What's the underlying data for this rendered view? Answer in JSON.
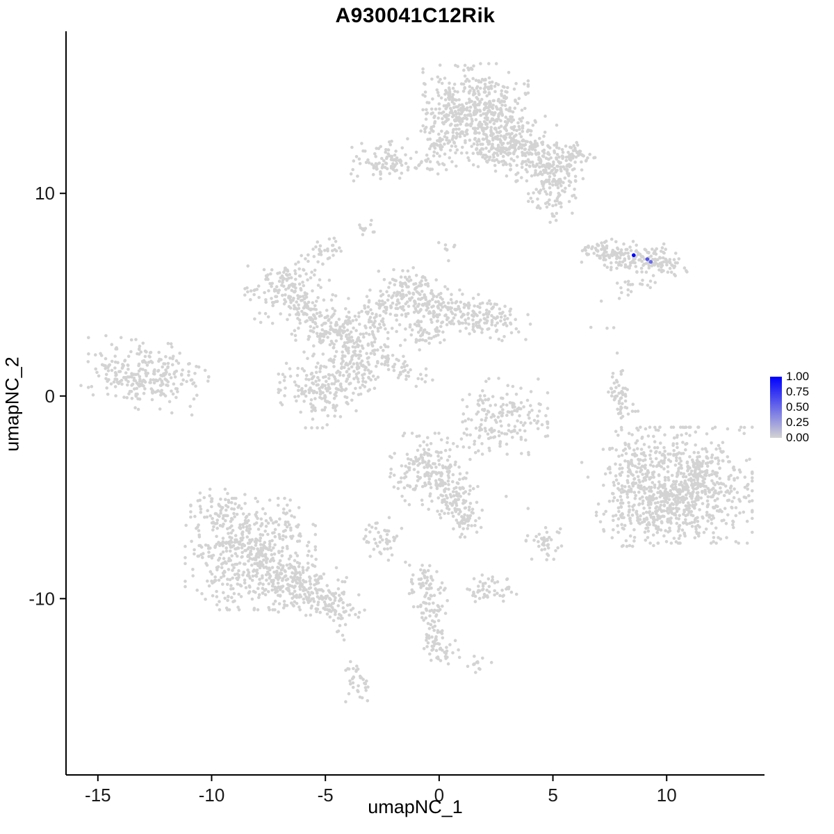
{
  "title": "A930041C12Rik",
  "axes": {
    "x_label": "umapNC_1",
    "y_label": "umapNC_2",
    "x_ticks": [
      -15,
      -10,
      -5,
      0,
      5,
      10
    ],
    "y_ticks": [
      -10,
      0,
      10
    ],
    "x_range": [
      -16.4,
      14.3
    ],
    "y_range": [
      -18.7,
      18.0
    ]
  },
  "legend": {
    "labels": [
      "1.00",
      "0.75",
      "0.50",
      "0.25",
      "0.00"
    ]
  },
  "colors": {
    "low": "#d3d3d3",
    "high": "#0000ff",
    "axis": "#000000",
    "tick_text": "#1a1a1a"
  },
  "chart_data": {
    "type": "scatter",
    "title": "A930041C12Rik",
    "xlabel": "umapNC_1",
    "ylabel": "umapNC_2",
    "xlim": [
      -16.4,
      14.3
    ],
    "ylim": [
      -18.7,
      18.0
    ],
    "grid": false,
    "legend_position": "right",
    "description": "UMAP feature plot of single-cell gene expression for A930041C12Rik. Nearly all cells (light grey, expression 0.00) form many clusters; only a few cells in the small cluster near (8.5, 7) show expression (blue). Grey cells are summarized as gaussian blobs in 'clusters' with format [cx, cy, sx, sy, rot_deg, n]; colored cells are listed individually in 'expressing_points'.",
    "clusters_format": [
      "cx",
      "cy",
      "sx",
      "sy",
      "rot_deg",
      "n"
    ],
    "clusters": [
      [
        1.6,
        14.2,
        1.05,
        1.0,
        0,
        400
      ],
      [
        2.7,
        12.7,
        0.95,
        0.8,
        -20,
        230
      ],
      [
        4.3,
        11.5,
        1.0,
        0.6,
        -25,
        190
      ],
      [
        4.9,
        10.0,
        0.5,
        0.65,
        0,
        80
      ],
      [
        5.7,
        11.9,
        0.5,
        0.45,
        0,
        55
      ],
      [
        0.3,
        12.9,
        0.5,
        0.8,
        0,
        80
      ],
      [
        -2.6,
        11.6,
        0.75,
        0.45,
        10,
        85
      ],
      [
        -0.9,
        11.4,
        0.7,
        0.2,
        0,
        25
      ],
      [
        -3.15,
        8.25,
        0.25,
        0.2,
        0,
        12
      ],
      [
        -4.8,
        7.3,
        0.45,
        0.28,
        0,
        26
      ],
      [
        7.2,
        7.05,
        0.55,
        0.32,
        -10,
        55
      ],
      [
        8.6,
        6.9,
        0.8,
        0.38,
        -8,
        115
      ],
      [
        9.9,
        6.55,
        0.45,
        0.28,
        0,
        45
      ],
      [
        8.6,
        5.55,
        0.45,
        0.22,
        0,
        16
      ],
      [
        8.0,
        5.0,
        0.15,
        0.15,
        0,
        3
      ],
      [
        -6.7,
        5.4,
        0.85,
        0.7,
        20,
        150
      ],
      [
        -6.0,
        4.2,
        0.6,
        0.45,
        0,
        60
      ],
      [
        -4.9,
        3.4,
        0.7,
        0.5,
        30,
        90
      ],
      [
        -3.9,
        2.3,
        0.75,
        0.8,
        0,
        150
      ],
      [
        -2.7,
        4.0,
        0.5,
        0.85,
        -25,
        80
      ],
      [
        -1.5,
        4.9,
        0.7,
        0.65,
        0,
        120
      ],
      [
        0.3,
        4.3,
        0.9,
        0.5,
        -10,
        110
      ],
      [
        2.0,
        3.7,
        0.9,
        0.5,
        -15,
        105
      ],
      [
        -0.6,
        3.0,
        0.5,
        0.5,
        0,
        50
      ],
      [
        -1.9,
        1.5,
        0.8,
        0.25,
        -25,
        50
      ],
      [
        -3.3,
        0.9,
        0.3,
        0.45,
        0,
        28
      ],
      [
        -12.9,
        1.0,
        1.25,
        0.78,
        -8,
        270
      ],
      [
        -5.3,
        0.3,
        0.8,
        0.85,
        0,
        170
      ],
      [
        8.0,
        0.1,
        0.28,
        0.85,
        8,
        55
      ],
      [
        2.9,
        -1.0,
        0.85,
        0.85,
        0,
        170
      ],
      [
        10.9,
        -4.4,
        1.3,
        1.3,
        0,
        680
      ],
      [
        9.3,
        -5.4,
        0.75,
        0.9,
        0,
        150
      ],
      [
        8.6,
        -3.3,
        0.5,
        0.8,
        0,
        80
      ],
      [
        7.9,
        -5.0,
        0.45,
        1.1,
        0,
        55
      ],
      [
        -0.4,
        -3.6,
        0.8,
        0.8,
        0,
        200
      ],
      [
        0.6,
        -5.3,
        0.5,
        0.7,
        20,
        90
      ],
      [
        1.1,
        -6.3,
        0.3,
        0.3,
        0,
        28
      ],
      [
        -2.5,
        -7.1,
        0.4,
        0.5,
        0,
        45
      ],
      [
        4.7,
        -7.3,
        0.4,
        0.4,
        0,
        40
      ],
      [
        -8.3,
        -7.8,
        1.3,
        1.25,
        0,
        500
      ],
      [
        -6.3,
        -9.3,
        0.9,
        0.7,
        -20,
        190
      ],
      [
        -4.8,
        -10.3,
        0.7,
        0.4,
        -15,
        85
      ],
      [
        -9.6,
        -5.7,
        0.6,
        0.5,
        0,
        65
      ],
      [
        -0.6,
        -9.3,
        0.4,
        0.5,
        0,
        55
      ],
      [
        -0.3,
        -10.8,
        0.3,
        0.6,
        0,
        45
      ],
      [
        -0.1,
        -12.0,
        0.25,
        0.3,
        0,
        22
      ],
      [
        2.3,
        -9.6,
        0.5,
        0.4,
        0,
        50
      ],
      [
        -4.3,
        -11.6,
        0.15,
        0.2,
        0,
        5
      ],
      [
        0.2,
        -12.7,
        0.4,
        0.3,
        0,
        26
      ],
      [
        1.6,
        -13.2,
        0.4,
        0.2,
        0,
        13
      ],
      [
        -3.6,
        -14.1,
        0.3,
        0.45,
        0,
        34
      ],
      [
        5.0,
        -3.0,
        1.5,
        1.5,
        0,
        8
      ],
      [
        7.5,
        3.6,
        0.8,
        0.8,
        0,
        5
      ],
      [
        0.3,
        7.5,
        0.5,
        0.8,
        0,
        8
      ]
    ],
    "expressing_points": [
      {
        "x": 8.55,
        "y": 6.95,
        "value": 1.0
      },
      {
        "x": 9.15,
        "y": 6.75,
        "value": 0.6
      },
      {
        "x": 9.3,
        "y": 6.62,
        "value": 0.5
      }
    ],
    "colorbar": {
      "min": 0.0,
      "max": 1.0,
      "breaks": [
        1.0,
        0.75,
        0.5,
        0.25,
        0.0
      ],
      "low_color": "#d3d3d3",
      "high_color": "#0000ff"
    }
  }
}
